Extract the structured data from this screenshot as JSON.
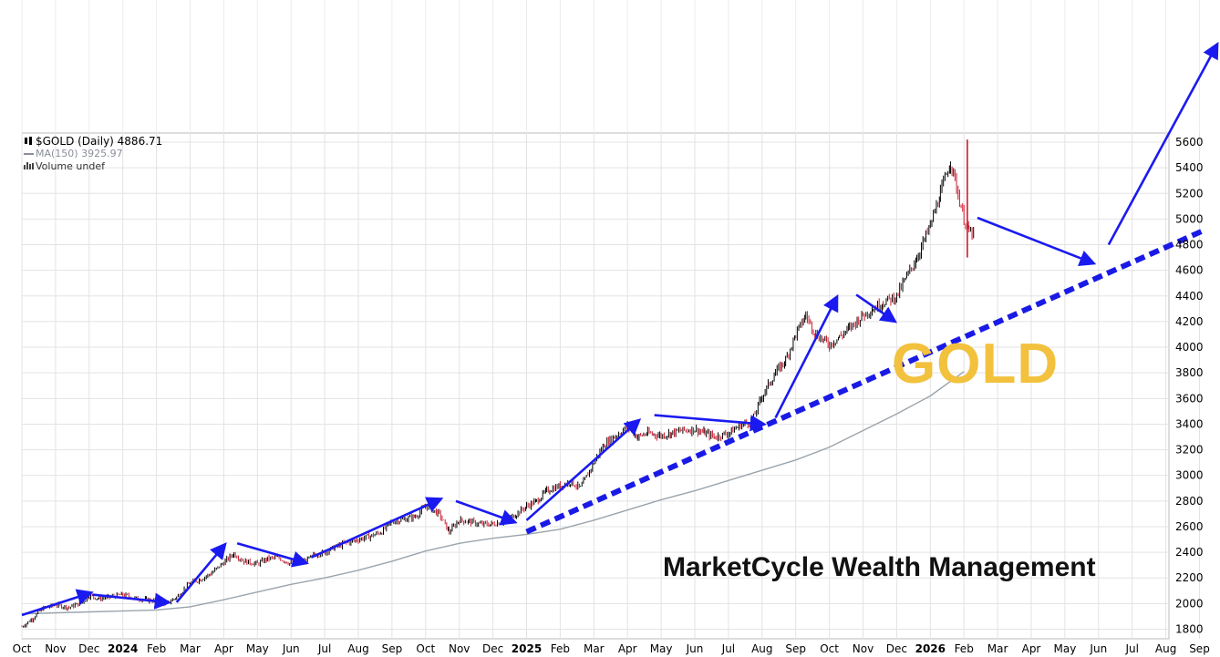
{
  "legend": {
    "symbol_line": "$GOLD (Daily) 4886.71",
    "ma_line": "MA(150) 3925.97",
    "volume_line": "Volume undef",
    "symbol_icon": "candlestick-icon",
    "ma_icon": "line-icon",
    "volume_icon": "bar-icon"
  },
  "watermark": {
    "title": "GOLD",
    "brand": "MarketCycle Wealth Management"
  },
  "colors": {
    "up": "#000000",
    "down": "#cc1a2e",
    "ma": "#9aa4ad",
    "annot": "#1a1af0",
    "trend": "#1a1ae6",
    "title": "#f2c13d"
  },
  "chart_data": {
    "type": "line",
    "title": "$GOLD (Daily) 4886.71",
    "xlabel": "",
    "ylabel": "",
    "ylim": [
      1750,
      5700
    ],
    "y_ticks": [
      1800,
      2000,
      2200,
      2400,
      2600,
      2800,
      3000,
      3200,
      3400,
      3600,
      3800,
      4000,
      4200,
      4400,
      4600,
      4800,
      5000,
      5200,
      5400,
      5600
    ],
    "x_ticks": [
      "Oct",
      "Nov",
      "Dec",
      "2024",
      "Feb",
      "Mar",
      "Apr",
      "May",
      "Jun",
      "Jul",
      "Aug",
      "Sep",
      "Oct",
      "Nov",
      "Dec",
      "2025",
      "Feb",
      "Mar",
      "Apr",
      "May",
      "Jun",
      "Jul",
      "Aug",
      "Sep",
      "Oct",
      "Nov",
      "Dec",
      "2026",
      "Feb",
      "Mar",
      "Apr",
      "May",
      "Jun",
      "Jul",
      "Aug",
      "Sep"
    ],
    "x_bold": [
      "2024",
      "2025",
      "2026"
    ],
    "x_start": 0,
    "x_end": 35.5,
    "grid": true,
    "series": [
      {
        "name": "$GOLD",
        "style": "candles",
        "x": [
          0,
          0.3,
          0.6,
          1,
          1.4,
          1.8,
          2,
          2.3,
          2.6,
          3,
          3.4,
          3.7,
          4,
          4.3,
          4.6,
          5,
          5.3,
          5.6,
          6,
          6.3,
          6.6,
          7,
          7.3,
          7.6,
          8,
          8.4,
          8.7,
          9,
          9.3,
          9.6,
          10,
          10.4,
          10.7,
          11,
          11.4,
          11.7,
          12,
          12.4,
          12.7,
          13,
          13.3,
          13.6,
          14,
          14.4,
          14.7,
          15,
          15.3,
          15.6,
          16,
          16.3,
          16.6,
          17,
          17.3,
          17.6,
          18,
          18.3,
          18.6,
          19,
          19.3,
          19.6,
          20,
          20.3,
          20.6,
          21,
          21.4,
          21.7,
          22,
          22.4,
          22.7,
          23,
          23.3,
          23.6,
          24,
          24.3,
          24.6,
          25,
          25.3,
          25.6,
          26,
          26.3,
          26.6,
          27,
          27.3,
          27.6,
          28,
          28.15,
          28.3
        ],
        "values": [
          1820,
          1880,
          1960,
          1990,
          1970,
          2010,
          2060,
          2040,
          2050,
          2070,
          2040,
          2030,
          2020,
          2000,
          2050,
          2160,
          2190,
          2230,
          2320,
          2390,
          2330,
          2310,
          2350,
          2360,
          2310,
          2330,
          2380,
          2400,
          2440,
          2470,
          2500,
          2530,
          2560,
          2640,
          2660,
          2680,
          2760,
          2700,
          2560,
          2650,
          2640,
          2620,
          2620,
          2650,
          2700,
          2760,
          2800,
          2880,
          2920,
          2950,
          2900,
          3100,
          3240,
          3300,
          3380,
          3300,
          3330,
          3310,
          3330,
          3350,
          3360,
          3330,
          3300,
          3330,
          3400,
          3420,
          3620,
          3800,
          3900,
          4100,
          4250,
          4100,
          4020,
          4080,
          4150,
          4250,
          4300,
          4350,
          4400,
          4550,
          4700,
          4950,
          5200,
          5450,
          5000,
          4900,
          4886.71
        ]
      },
      {
        "name": "MA(150)",
        "style": "line",
        "x": [
          0,
          2,
          4,
          5,
          6,
          7,
          8,
          9,
          10,
          11,
          12,
          13,
          14,
          15,
          16,
          17,
          18,
          19,
          20,
          21,
          22,
          23,
          24,
          25,
          26,
          27,
          28
        ],
        "values": [
          1920,
          1935,
          1950,
          1975,
          2030,
          2090,
          2150,
          2200,
          2260,
          2330,
          2410,
          2470,
          2510,
          2540,
          2580,
          2650,
          2730,
          2810,
          2880,
          2960,
          3040,
          3120,
          3220,
          3350,
          3480,
          3620,
          3810
        ]
      }
    ],
    "annotations": {
      "trendline": {
        "from": [
          15,
          2560
        ],
        "to": [
          35.2,
          4920
        ],
        "style": "dashed"
      },
      "arrows": [
        {
          "from": [
            0,
            1910
          ],
          "to": [
            2,
            2080
          ]
        },
        {
          "from": [
            2.1,
            2070
          ],
          "to": [
            4.3,
            2010
          ]
        },
        {
          "from": [
            4.6,
            2010
          ],
          "to": [
            6,
            2450
          ]
        },
        {
          "from": [
            6.4,
            2470
          ],
          "to": [
            8.4,
            2320
          ]
        },
        {
          "from": [
            8.6,
            2360
          ],
          "to": [
            12.4,
            2810
          ]
        },
        {
          "from": [
            12.9,
            2800
          ],
          "to": [
            14.6,
            2640
          ]
        },
        {
          "from": [
            15,
            2650
          ],
          "to": [
            18.3,
            3420
          ]
        },
        {
          "from": [
            18.8,
            3470
          ],
          "to": [
            22,
            3400
          ]
        },
        {
          "from": [
            22.4,
            3450
          ],
          "to": [
            24.2,
            4380
          ]
        },
        {
          "from": [
            24.8,
            4410
          ],
          "to": [
            25.9,
            4210
          ]
        },
        {
          "from": [
            28.4,
            5010
          ],
          "to": [
            31.8,
            4660
          ]
        },
        {
          "from": [
            32.3,
            4800
          ],
          "to": [
            35.5,
            6350
          ]
        }
      ]
    }
  }
}
